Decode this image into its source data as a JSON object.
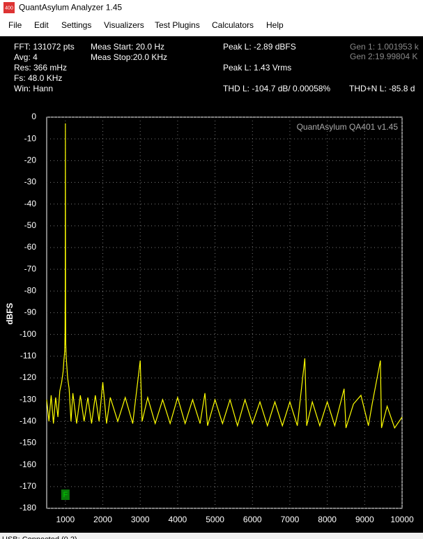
{
  "window": {
    "icon": "400",
    "title": "QuantAsylum Analyzer 1.45"
  },
  "menu": [
    "File",
    "Edit",
    "Settings",
    "Visualizers",
    "Test Plugins",
    "Calculators",
    "Help"
  ],
  "stats": {
    "left": [
      "FFT: 131072 pts",
      "Avg: 4",
      "Res: 366 mHz",
      "Fs: 48.0 KHz",
      "Win: Hann"
    ],
    "meas": [
      "Meas Start: 20.0 Hz",
      "Meas Stop:20.0 KHz"
    ],
    "peak": [
      "Peak L: -2.89 dBFS",
      "Peak L: 1.43 Vrms"
    ],
    "thd": "THD L: -104.7 dB/ 0.00058%",
    "thdn": "THD+N L: -85.8 d",
    "gen": [
      "Gen 1: 1.001953 k",
      "Gen 2:19.99804 K"
    ]
  },
  "chart_data": {
    "type": "line",
    "ylabel": "dBFS",
    "watermark": "QuantAsylum QA401 v1.45",
    "x": [
      500,
      560,
      620,
      680,
      740,
      800,
      850,
      900,
      940,
      960,
      980,
      990,
      995,
      1000,
      1005,
      1010,
      1020,
      1040,
      1060,
      1100,
      1150,
      1200,
      1300,
      1400,
      1500,
      1600,
      1700,
      1800,
      1900,
      2000,
      2100,
      2200,
      2400,
      2600,
      2800,
      3000,
      3050,
      3200,
      3400,
      3600,
      3800,
      4000,
      4200,
      4400,
      4600,
      4730,
      4800,
      5000,
      5200,
      5400,
      5600,
      5800,
      6000,
      6200,
      6400,
      6600,
      6800,
      7000,
      7200,
      7400,
      7450,
      7600,
      7800,
      8000,
      8200,
      8450,
      8500,
      8700,
      8900,
      9100,
      9200,
      9420,
      9450,
      9600,
      9800,
      10000
    ],
    "series": [
      {
        "color": "#ffff00",
        "values": [
          -130,
          -140,
          -128,
          -141,
          -129,
          -138,
          -126,
          -122,
          -117,
          -112,
          -108,
          -100,
          -80,
          -2.89,
          -85,
          -104,
          -110,
          -115,
          -120,
          -125,
          -140,
          -127,
          -141,
          -128,
          -140,
          -129,
          -141,
          -128,
          -140,
          -122,
          -141,
          -129,
          -140,
          -129,
          -141,
          -112,
          -140,
          -129,
          -141,
          -130,
          -141,
          -129,
          -141,
          -130,
          -141,
          -127,
          -142,
          -130,
          -141,
          -130,
          -142,
          -130,
          -141,
          -131,
          -142,
          -131,
          -142,
          -131,
          -142,
          -111,
          -142,
          -131,
          -142,
          -131,
          -142,
          -125,
          -143,
          -132,
          -128,
          -142,
          -132,
          -112,
          -143,
          -133,
          -143,
          -138
        ]
      }
    ],
    "xlim": [
      500,
      10000
    ],
    "xticks": [
      1000,
      2000,
      3000,
      4000,
      5000,
      6000,
      7000,
      8000,
      9000,
      10000
    ],
    "ylim": [
      -180,
      0
    ],
    "yticks": [
      0,
      -10,
      -20,
      -30,
      -40,
      -50,
      -60,
      -70,
      -80,
      -90,
      -100,
      -110,
      -120,
      -130,
      -140,
      -150,
      -160,
      -170,
      -180
    ],
    "grid": true,
    "marker": {
      "label": "F",
      "x": 1000
    }
  },
  "status": "USB: Connected (0.2)"
}
